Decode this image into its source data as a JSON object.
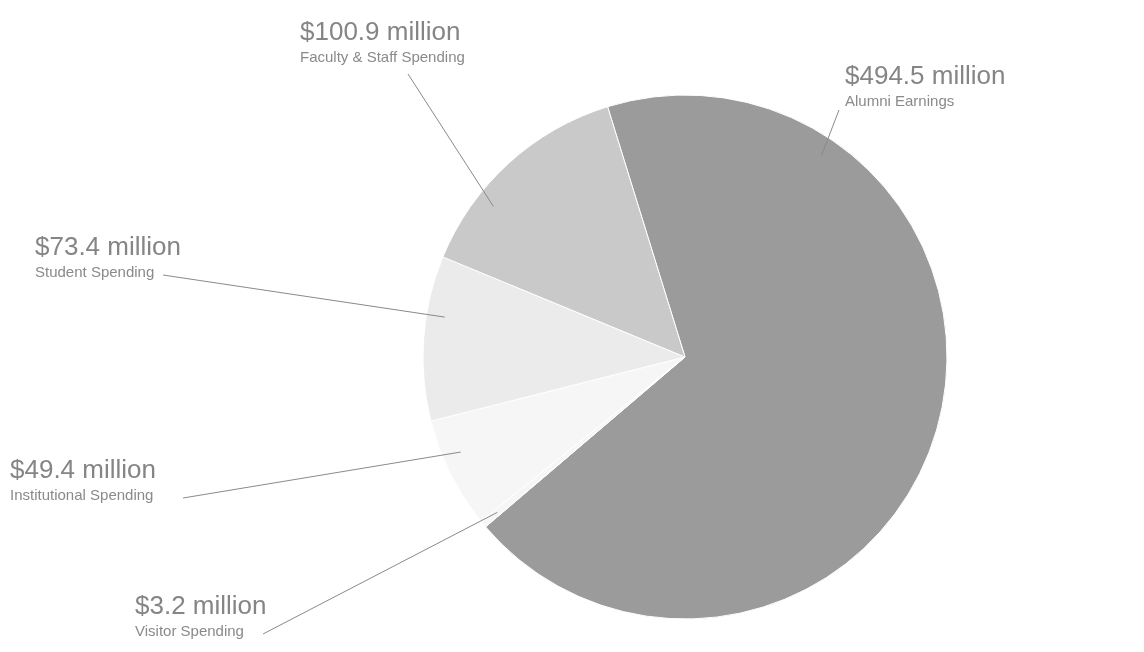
{
  "chart_data": {
    "type": "pie",
    "categories": [
      "Alumni Earnings",
      "Visitor Spending",
      "Institutional Spending",
      "Student Spending",
      "Faculty & Staff Spending"
    ],
    "values": [
      494.5,
      3.2,
      49.4,
      73.4,
      100.9
    ],
    "value_labels": [
      "$494.5 million",
      "$3.2 million",
      "$49.4 million",
      "$73.4 million",
      "$100.9 million"
    ],
    "colors": [
      "#9b9b9b",
      "#f6f6f6",
      "#f6f6f6",
      "#ebebeb",
      "#c9c9c9"
    ]
  }
}
